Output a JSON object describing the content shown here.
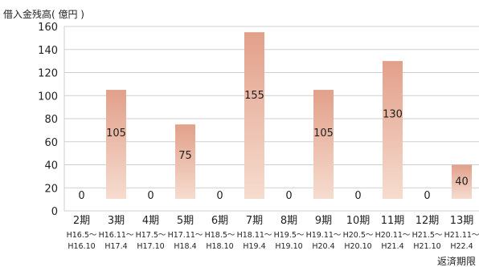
{
  "chart_data": {
    "type": "bar",
    "title": "",
    "ylabel": "借入金残高( 億円 )",
    "xlabel": "返済期限",
    "ylim": [
      0,
      160
    ],
    "yticks": [
      0,
      20,
      40,
      60,
      80,
      100,
      120,
      140,
      160
    ],
    "grid": true,
    "categories": [
      "2期",
      "3期",
      "4期",
      "5期",
      "6期",
      "7期",
      "8期",
      "9期",
      "10期",
      "11期",
      "12期",
      "13期"
    ],
    "periods": [
      [
        "H16.5～",
        "H16.10"
      ],
      [
        "H16.11～",
        "H17.4"
      ],
      [
        "H17.5～",
        "H17.10"
      ],
      [
        "H17.11～",
        "H18.4"
      ],
      [
        "H18.5～",
        "H18.10"
      ],
      [
        "H18.11～",
        "H19.4"
      ],
      [
        "H19.5～",
        "H19.10"
      ],
      [
        "H19.11～",
        "H20.4"
      ],
      [
        "H20.5～",
        "H20.10"
      ],
      [
        "H20.11～",
        "H21.4"
      ],
      [
        "H21.5～",
        "H21.10"
      ],
      [
        "H21.11～",
        "H22.4"
      ]
    ],
    "values": [
      0,
      105,
      0,
      75,
      0,
      155,
      0,
      105,
      0,
      130,
      0,
      40
    ],
    "data_labels": [
      "0",
      "105",
      "0",
      "75",
      "0",
      "155",
      "0",
      "105",
      "0",
      "130",
      "0",
      "40"
    ],
    "colors": {
      "bar_top": "#e2a08a",
      "bar_bottom": "#f6dccf"
    }
  }
}
